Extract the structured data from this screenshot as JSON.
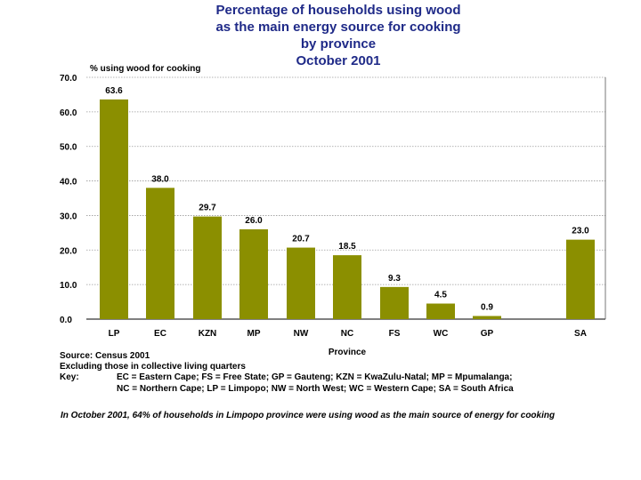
{
  "chart_data": {
    "type": "bar",
    "title": [
      "Percentage of households using wood",
      "as the main energy source for cooking",
      "by province",
      "October 2001"
    ],
    "ylabel": "% using wood for cooking",
    "xlabel": "Province",
    "ylim": [
      0,
      70
    ],
    "yticks": [
      "0.0",
      "10.0",
      "20.0",
      "30.0",
      "40.0",
      "50.0",
      "60.0",
      "70.0"
    ],
    "categories": [
      "LP",
      "EC",
      "KZN",
      "MP",
      "NW",
      "NC",
      "FS",
      "WC",
      "GP",
      "SA"
    ],
    "values": [
      63.6,
      38.0,
      29.7,
      26.0,
      20.7,
      18.5,
      9.3,
      4.5,
      0.9,
      23.0
    ],
    "value_labels": [
      "63.6",
      "38.0",
      "29.7",
      "26.0",
      "20.7",
      "18.5",
      "9.3",
      "4.5",
      "0.9",
      "23.0"
    ],
    "gridlines": true,
    "bar_color": "#8b8f00"
  },
  "notes": {
    "source": "Source: Census 2001",
    "excluding": "Excluding those in collective living quarters",
    "key_label": "Key:",
    "key_line1": "EC = Eastern Cape; FS = Free State; GP = Gauteng; KZN = KwaZulu-Natal; MP = Mpumalanga;",
    "key_line2": "NC = Northern Cape; LP = Limpopo; NW = North West; WC = Western Cape;  SA = South Africa"
  },
  "footnote": "In October 2001, 64% of households in Limpopo province were using wood as the main source of energy for cooking",
  "colors": {
    "title": "#1f2a88",
    "bar": "#8b8f00",
    "grid": "#9a9a9a"
  }
}
